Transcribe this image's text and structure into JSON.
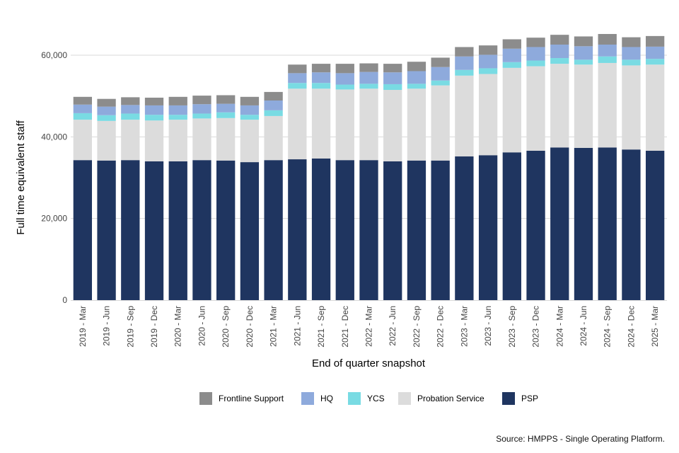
{
  "chart_data": {
    "type": "bar",
    "stacked": true,
    "title": "",
    "xlabel": "End of quarter snapshot",
    "ylabel": "Full time equivalent staff",
    "ylim": [
      0,
      70000
    ],
    "yticks": [
      0,
      20000,
      40000,
      60000
    ],
    "ytick_labels": [
      "0",
      "20,000",
      "40,000",
      "60,000"
    ],
    "grid": true,
    "legend_position": "bottom",
    "categories": [
      "2019 - Mar",
      "2019 - Jun",
      "2019 - Sep",
      "2019 - Dec",
      "2020 - Mar",
      "2020 - Jun",
      "2020 - Sep",
      "2020 - Dec",
      "2021 - Mar",
      "2021 - Jun",
      "2021 - Sep",
      "2021 - Dec",
      "2022 - Mar",
      "2022 - Jun",
      "2022 - Sep",
      "2022 - Dec",
      "2023 - Mar",
      "2023 - Jun",
      "2023 - Sep",
      "2023 - Dec",
      "2024 - Mar",
      "2024 - Jun",
      "2024 - Sep",
      "2024 - Dec",
      "2025 - Mar"
    ],
    "series": [
      {
        "name": "PSP",
        "color": "#1f3560",
        "values": [
          34300,
          34200,
          34300,
          34000,
          34000,
          34300,
          34200,
          33800,
          34300,
          34500,
          34700,
          34300,
          34300,
          34000,
          34200,
          34200,
          35200,
          35500,
          36200,
          36600,
          37400,
          37300,
          37400,
          36900,
          36600
        ]
      },
      {
        "name": "Probation Service",
        "color": "#dcdcdc",
        "values": [
          9900,
          9700,
          9900,
          10000,
          10200,
          10200,
          10400,
          10400,
          10800,
          17300,
          17100,
          17300,
          17500,
          17500,
          17600,
          18400,
          19800,
          19900,
          20700,
          20700,
          20500,
          20400,
          20700,
          20600,
          21100
        ]
      },
      {
        "name": "YCS",
        "color": "#79dbe3",
        "values": [
          1600,
          1400,
          1500,
          1400,
          1200,
          1200,
          1400,
          1200,
          1400,
          1400,
          1400,
          1200,
          1200,
          1400,
          1200,
          1200,
          1400,
          1400,
          1400,
          1400,
          1400,
          1200,
          1600,
          1400,
          1400
        ]
      },
      {
        "name": "HQ",
        "color": "#8eaadc",
        "values": [
          2100,
          2100,
          2100,
          2300,
          2300,
          2300,
          2100,
          2300,
          2400,
          2400,
          2600,
          2800,
          2900,
          2900,
          3100,
          3300,
          3300,
          3300,
          3300,
          3300,
          3300,
          3300,
          2900,
          3100,
          3000
        ]
      },
      {
        "name": "Frontline Support",
        "color": "#8c8c8c",
        "values": [
          1900,
          1900,
          1900,
          1900,
          2100,
          2100,
          2100,
          2100,
          2100,
          2100,
          2100,
          2300,
          2100,
          2100,
          2300,
          2300,
          2300,
          2300,
          2300,
          2300,
          2400,
          2400,
          2600,
          2400,
          2600
        ]
      }
    ],
    "legend_order": [
      "Frontline Support",
      "HQ",
      "YCS",
      "Probation Service",
      "PSP"
    ]
  },
  "source_note": "Source: HMPPS - Single Operating Platform."
}
